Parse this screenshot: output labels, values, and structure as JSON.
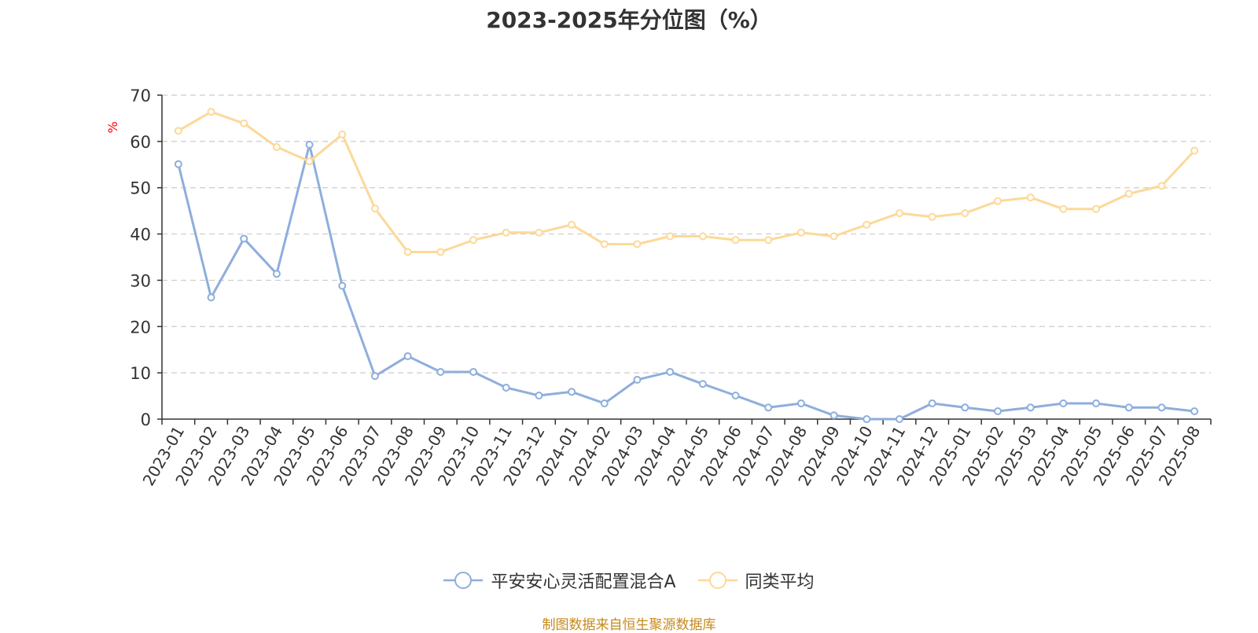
{
  "chart_data": {
    "type": "line",
    "title": "2023-2025年分位图（%）",
    "ylabel": "%",
    "xlabel": "",
    "ylim": [
      0,
      70
    ],
    "yticks": [
      0,
      10,
      20,
      30,
      40,
      50,
      60,
      70
    ],
    "grid": true,
    "legend_position": "bottom",
    "categories": [
      "2023-01",
      "2023-02",
      "2023-03",
      "2023-04",
      "2023-05",
      "2023-06",
      "2023-07",
      "2023-08",
      "2023-09",
      "2023-10",
      "2023-11",
      "2023-12",
      "2024-01",
      "2024-02",
      "2024-03",
      "2024-04",
      "2024-05",
      "2024-06",
      "2024-07",
      "2024-08",
      "2024-09",
      "2024-10",
      "2024-11",
      "2024-12",
      "2025-01",
      "2025-02",
      "2025-03",
      "2025-04",
      "2025-05",
      "2025-06",
      "2025-07",
      "2025-08"
    ],
    "series": [
      {
        "name": "平安安心灵活配置混合A",
        "color": "#8eaedc",
        "values": [
          55.1,
          26.3,
          39.0,
          31.4,
          59.3,
          28.8,
          9.3,
          13.6,
          10.2,
          10.2,
          6.8,
          5.1,
          5.9,
          3.4,
          8.5,
          10.2,
          7.6,
          5.1,
          2.5,
          3.4,
          0.8,
          0.0,
          0.0,
          3.4,
          2.5,
          1.7,
          2.5,
          3.4,
          3.4,
          2.5,
          2.5,
          1.7
        ]
      },
      {
        "name": "同类平均",
        "color": "#fcd998",
        "values": [
          62.3,
          66.4,
          63.9,
          58.8,
          55.7,
          61.5,
          45.5,
          36.1,
          36.1,
          38.7,
          40.3,
          40.3,
          42.0,
          37.8,
          37.8,
          39.5,
          39.5,
          38.7,
          38.7,
          40.3,
          39.5,
          42.0,
          44.5,
          43.7,
          44.5,
          47.1,
          47.9,
          45.4,
          45.4,
          48.7,
          50.4,
          58.0
        ]
      }
    ]
  },
  "footer": {
    "source": "制图数据来自恒生聚源数据库"
  }
}
